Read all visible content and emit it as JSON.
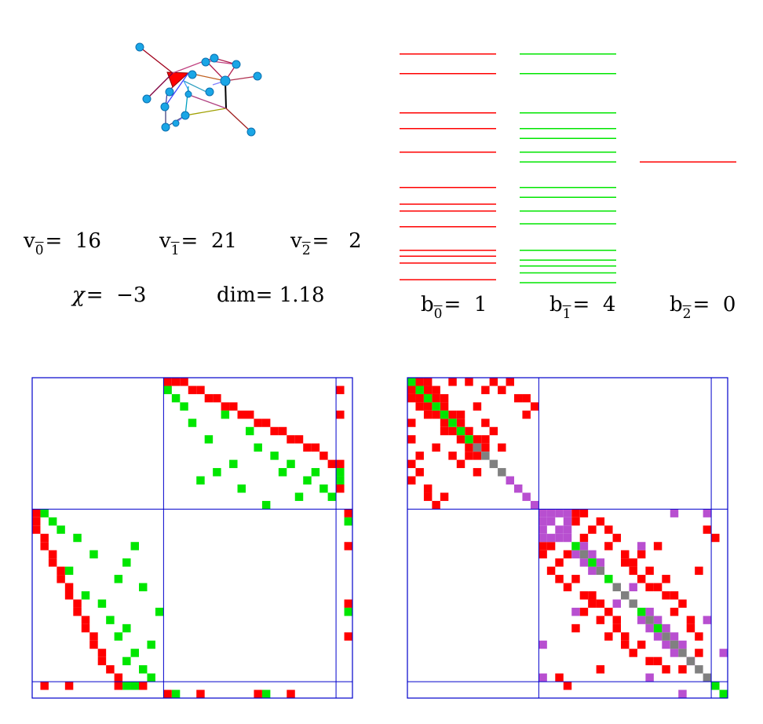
{
  "stats": {
    "v0": {
      "symbol": "v",
      "index": "0",
      "value": "16"
    },
    "v1": {
      "symbol": "v",
      "index": "1",
      "value": "21"
    },
    "v2": {
      "symbol": "v",
      "index": "2",
      "value": "2"
    },
    "b0": {
      "symbol": "b",
      "index": "0",
      "value": "1"
    },
    "b1": {
      "symbol": "b",
      "index": "1",
      "value": "4"
    },
    "b2": {
      "symbol": "b",
      "index": "2",
      "value": "0"
    },
    "chi": {
      "symbol": "χ",
      "value": "−3"
    },
    "dim": {
      "label": "dim",
      "value": "1.18"
    }
  },
  "colors": {
    "red": "#ff0000",
    "green": "#00e600",
    "blue": "#0000cc",
    "purple": "#b84fd0",
    "gray": "#808080",
    "node": "#1aa6e6"
  },
  "spectrum": {
    "b0_levels": [
      0.7,
      2.7,
      6.7,
      8.3,
      10.7,
      14.3,
      16.0,
      16.7,
      18.3,
      20.7,
      21.3,
      22.0,
      23.7
    ],
    "b1_levels": [
      0.7,
      2.7,
      6.7,
      8.3,
      9.3,
      10.7,
      11.7,
      14.3,
      15.3,
      16.7,
      18.0,
      20.7,
      21.7,
      22.3,
      23.0,
      24.0
    ],
    "b2_levels": [
      11.7
    ]
  },
  "matrices": {
    "dirac": {
      "n": 39,
      "blocks": [
        16,
        37
      ],
      "red": [
        [
          16,
          0
        ],
        [
          0,
          16
        ],
        [
          17,
          0
        ],
        [
          0,
          17
        ],
        [
          18,
          0
        ],
        [
          0,
          18
        ],
        [
          19,
          1
        ],
        [
          1,
          19
        ],
        [
          20,
          1
        ],
        [
          1,
          20
        ],
        [
          21,
          2
        ],
        [
          2,
          21
        ],
        [
          22,
          2
        ],
        [
          2,
          22
        ],
        [
          23,
          3
        ],
        [
          3,
          23
        ],
        [
          24,
          3
        ],
        [
          3,
          24
        ],
        [
          25,
          4
        ],
        [
          4,
          25
        ],
        [
          26,
          4
        ],
        [
          4,
          26
        ],
        [
          27,
          5
        ],
        [
          5,
          27
        ],
        [
          28,
          5
        ],
        [
          5,
          28
        ],
        [
          29,
          6
        ],
        [
          6,
          29
        ],
        [
          30,
          6
        ],
        [
          6,
          30
        ],
        [
          31,
          7
        ],
        [
          7,
          31
        ],
        [
          32,
          7
        ],
        [
          7,
          32
        ],
        [
          33,
          8
        ],
        [
          8,
          33
        ],
        [
          34,
          8
        ],
        [
          8,
          34
        ],
        [
          35,
          9
        ],
        [
          9,
          35
        ],
        [
          36,
          10
        ],
        [
          10,
          36
        ],
        [
          38,
          16
        ],
        [
          16,
          38
        ],
        [
          38,
          20
        ],
        [
          20,
          38
        ],
        [
          38,
          27
        ],
        [
          27,
          38
        ],
        [
          38,
          31
        ],
        [
          31,
          38
        ],
        [
          37,
          1
        ],
        [
          1,
          37
        ],
        [
          37,
          4
        ],
        [
          4,
          37
        ],
        [
          37,
          10
        ],
        [
          10,
          37
        ],
        [
          37,
          13
        ],
        [
          13,
          37
        ]
      ],
      "green": [
        [
          16,
          1
        ],
        [
          1,
          16
        ],
        [
          17,
          2
        ],
        [
          2,
          17
        ],
        [
          18,
          3
        ],
        [
          3,
          18
        ],
        [
          19,
          5
        ],
        [
          5,
          19
        ],
        [
          20,
          12
        ],
        [
          12,
          20
        ],
        [
          21,
          7
        ],
        [
          7,
          21
        ],
        [
          22,
          11
        ],
        [
          11,
          22
        ],
        [
          23,
          4
        ],
        [
          4,
          23
        ],
        [
          24,
          10
        ],
        [
          10,
          24
        ],
        [
          25,
          13
        ],
        [
          13,
          25
        ],
        [
          26,
          6
        ],
        [
          6,
          26
        ],
        [
          27,
          8
        ],
        [
          8,
          27
        ],
        [
          28,
          15
        ],
        [
          15,
          28
        ],
        [
          29,
          9
        ],
        [
          9,
          29
        ],
        [
          30,
          11
        ],
        [
          11,
          30
        ],
        [
          31,
          10
        ],
        [
          10,
          31
        ],
        [
          32,
          14
        ],
        [
          14,
          32
        ],
        [
          33,
          12
        ],
        [
          12,
          33
        ],
        [
          34,
          11
        ],
        [
          11,
          34
        ],
        [
          35,
          13
        ],
        [
          13,
          35
        ],
        [
          36,
          14
        ],
        [
          14,
          36
        ],
        [
          38,
          17
        ],
        [
          17,
          38
        ],
        [
          38,
          28
        ],
        [
          28,
          38
        ],
        [
          37,
          11
        ],
        [
          11,
          37
        ],
        [
          37,
          12
        ],
        [
          12,
          37
        ]
      ],
      "purple": [],
      "gray": []
    },
    "laplacian": {
      "n": 39,
      "blocks": [
        16,
        37
      ],
      "green": [
        [
          0,
          0
        ],
        [
          1,
          1
        ],
        [
          2,
          2
        ],
        [
          3,
          3
        ],
        [
          4,
          4
        ],
        [
          5,
          5
        ],
        [
          6,
          6
        ],
        [
          7,
          7
        ],
        [
          20,
          20
        ],
        [
          22,
          22
        ],
        [
          24,
          24
        ],
        [
          28,
          28
        ],
        [
          30,
          30
        ],
        [
          37,
          37
        ],
        [
          38,
          38
        ]
      ],
      "gray": [
        [
          8,
          8
        ],
        [
          9,
          9
        ],
        [
          10,
          10
        ],
        [
          11,
          11
        ],
        [
          21,
          21
        ],
        [
          23,
          23
        ],
        [
          25,
          25
        ],
        [
          26,
          26
        ],
        [
          27,
          27
        ],
        [
          29,
          29
        ],
        [
          31,
          31
        ],
        [
          32,
          32
        ],
        [
          33,
          33
        ],
        [
          34,
          34
        ],
        [
          35,
          35
        ],
        [
          36,
          36
        ]
      ],
      "purple": [
        [
          12,
          12
        ],
        [
          13,
          13
        ],
        [
          14,
          14
        ],
        [
          15,
          15
        ],
        [
          16,
          16
        ],
        [
          17,
          17
        ],
        [
          18,
          18
        ],
        [
          19,
          19
        ],
        [
          16,
          17
        ],
        [
          17,
          16
        ],
        [
          16,
          18
        ],
        [
          18,
          16
        ],
        [
          16,
          19
        ],
        [
          19,
          16
        ],
        [
          17,
          19
        ],
        [
          19,
          17
        ],
        [
          18,
          19
        ],
        [
          19,
          18
        ],
        [
          21,
          20
        ],
        [
          20,
          21
        ],
        [
          21,
          22
        ],
        [
          22,
          21
        ],
        [
          22,
          23
        ],
        [
          23,
          22
        ],
        [
          27,
          25
        ],
        [
          25,
          27
        ],
        [
          29,
          28
        ],
        [
          28,
          29
        ],
        [
          30,
          29
        ],
        [
          29,
          30
        ],
        [
          31,
          30
        ],
        [
          30,
          31
        ],
        [
          32,
          31
        ],
        [
          31,
          32
        ],
        [
          33,
          32
        ],
        [
          32,
          33
        ],
        [
          16,
          32
        ],
        [
          32,
          16
        ],
        [
          28,
          20
        ],
        [
          20,
          28
        ],
        [
          34,
          34
        ],
        [
          16,
          36
        ],
        [
          36,
          16
        ],
        [
          36,
          29
        ],
        [
          29,
          36
        ],
        [
          33,
          38
        ],
        [
          38,
          33
        ]
      ],
      "red": [
        [
          0,
          1
        ],
        [
          1,
          0
        ],
        [
          0,
          2
        ],
        [
          2,
          0
        ],
        [
          1,
          2
        ],
        [
          2,
          1
        ],
        [
          0,
          5
        ],
        [
          5,
          0
        ],
        [
          0,
          7
        ],
        [
          7,
          0
        ],
        [
          0,
          10
        ],
        [
          10,
          0
        ],
        [
          0,
          12
        ],
        [
          12,
          0
        ],
        [
          1,
          3
        ],
        [
          3,
          1
        ],
        [
          1,
          9
        ],
        [
          9,
          1
        ],
        [
          1,
          11
        ],
        [
          11,
          1
        ],
        [
          2,
          4
        ],
        [
          4,
          2
        ],
        [
          2,
          13
        ],
        [
          13,
          2
        ],
        [
          3,
          4
        ],
        [
          4,
          3
        ],
        [
          3,
          8
        ],
        [
          8,
          3
        ],
        [
          4,
          5
        ],
        [
          5,
          4
        ],
        [
          4,
          6
        ],
        [
          6,
          4
        ],
        [
          4,
          14
        ],
        [
          14,
          4
        ],
        [
          5,
          6
        ],
        [
          6,
          5
        ],
        [
          5,
          9
        ],
        [
          9,
          5
        ],
        [
          6,
          7
        ],
        [
          7,
          6
        ],
        [
          6,
          10
        ],
        [
          10,
          6
        ],
        [
          7,
          8
        ],
        [
          8,
          7
        ],
        [
          7,
          9
        ],
        [
          9,
          7
        ],
        [
          8,
          9
        ],
        [
          9,
          8
        ],
        [
          8,
          11
        ],
        [
          11,
          8
        ],
        [
          2,
          3
        ],
        [
          3,
          2
        ],
        [
          2,
          14
        ],
        [
          14,
          2
        ],
        [
          3,
          15
        ],
        [
          15,
          3
        ],
        [
          16,
          20
        ],
        [
          20,
          16
        ],
        [
          16,
          21
        ],
        [
          21,
          16
        ],
        [
          17,
          20
        ],
        [
          20,
          17
        ],
        [
          17,
          23
        ],
        [
          23,
          17
        ],
        [
          18,
          22
        ],
        [
          22,
          18
        ],
        [
          18,
          24
        ],
        [
          24,
          18
        ],
        [
          19,
          21
        ],
        [
          21,
          19
        ],
        [
          19,
          25
        ],
        [
          25,
          19
        ],
        [
          20,
          24
        ],
        [
          24,
          20
        ],
        [
          20,
          30
        ],
        [
          30,
          20
        ],
        [
          21,
          26
        ],
        [
          26,
          21
        ],
        [
          21,
          28
        ],
        [
          28,
          21
        ],
        [
          22,
          26
        ],
        [
          26,
          22
        ],
        [
          22,
          27
        ],
        [
          27,
          22
        ],
        [
          23,
          27
        ],
        [
          27,
          23
        ],
        [
          23,
          29
        ],
        [
          29,
          23
        ],
        [
          24,
          28
        ],
        [
          28,
          24
        ],
        [
          24,
          31
        ],
        [
          31,
          24
        ],
        [
          25,
          29
        ],
        [
          29,
          25
        ],
        [
          25,
          30
        ],
        [
          30,
          25
        ],
        [
          26,
          31
        ],
        [
          31,
          26
        ],
        [
          26,
          32
        ],
        [
          32,
          26
        ],
        [
          27,
          33
        ],
        [
          33,
          27
        ],
        [
          28,
          32
        ],
        [
          32,
          28
        ],
        [
          29,
          34
        ],
        [
          34,
          29
        ],
        [
          30,
          34
        ],
        [
          34,
          30
        ],
        [
          31,
          35
        ],
        [
          35,
          31
        ],
        [
          33,
          35
        ],
        [
          35,
          33
        ],
        [
          18,
          36
        ],
        [
          36,
          18
        ],
        [
          19,
          37
        ],
        [
          37,
          19
        ],
        [
          23,
          35
        ],
        [
          35,
          23
        ]
      ]
    }
  }
}
